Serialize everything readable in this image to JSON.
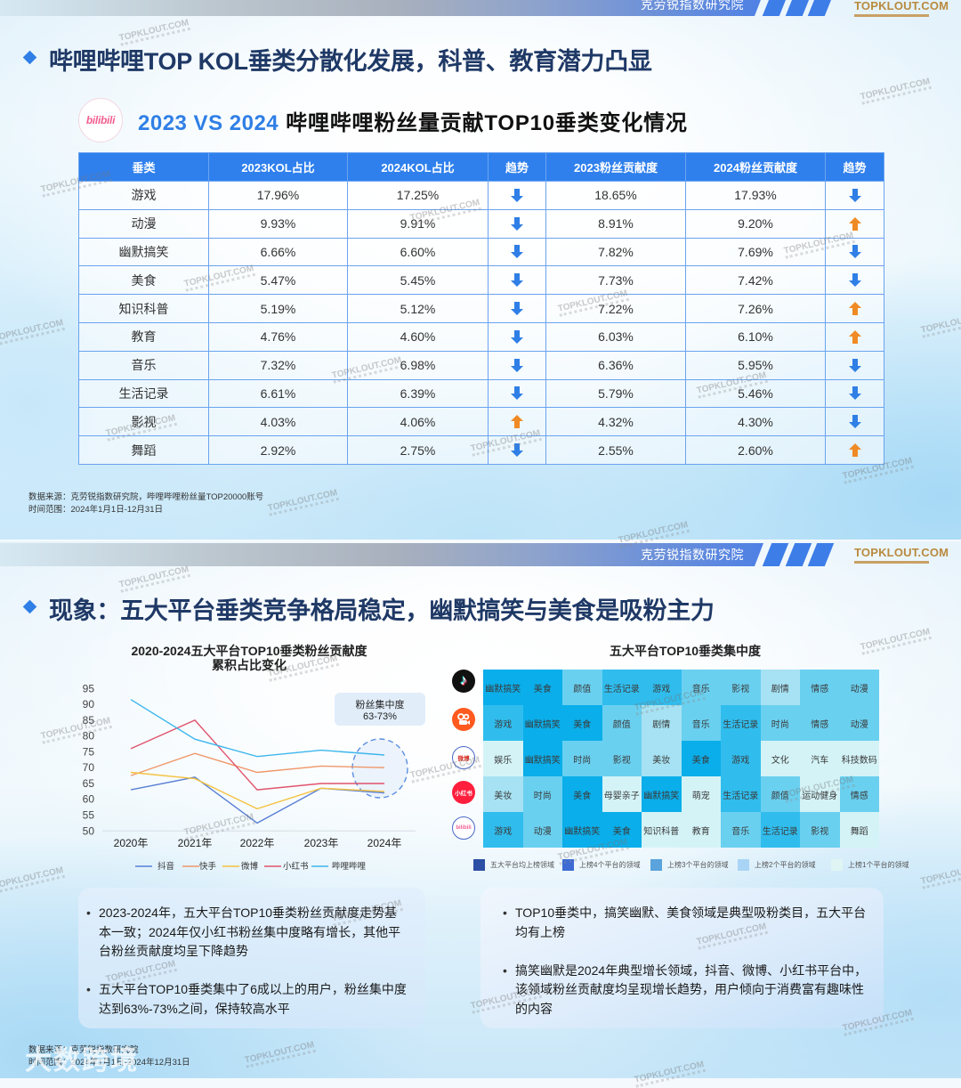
{
  "watermark": "TOPKLOUT.COM",
  "overlay_watermark": "大数跨境",
  "header": {
    "org": "克劳锐指数研究院",
    "logo": "TOPKLOUT.COM"
  },
  "colors": {
    "accent": "#2f7fe6",
    "title": "#1f3966",
    "table_header": "#2f80ed",
    "trend_down": "#2f7fe6",
    "trend_up": "#f08a24",
    "brand_gold": "#b98a3e"
  },
  "slide1": {
    "title": "哔哩哔哩TOP KOL垂类分散化发展，科普、教育潜力凸显",
    "platform_logo": "bilibili",
    "subtitle_highlight": "2023 VS 2024",
    "subtitle": "哔哩哔哩粉丝量贡献TOP10垂类变化情况",
    "table": {
      "headers": [
        "垂类",
        "2023KOL占比",
        "2024KOL占比",
        "趋势",
        "2023粉丝贡献度",
        "2024粉丝贡献度",
        "趋势"
      ],
      "rows": [
        {
          "category": "游戏",
          "kol2023": "17.96%",
          "kol2024": "17.25%",
          "kol_trend": "down",
          "fan2023": "18.65%",
          "fan2024": "17.93%",
          "fan_trend": "down"
        },
        {
          "category": "动漫",
          "kol2023": "9.93%",
          "kol2024": "9.91%",
          "kol_trend": "down",
          "fan2023": "8.91%",
          "fan2024": "9.20%",
          "fan_trend": "up"
        },
        {
          "category": "幽默搞笑",
          "kol2023": "6.66%",
          "kol2024": "6.60%",
          "kol_trend": "down",
          "fan2023": "7.82%",
          "fan2024": "7.69%",
          "fan_trend": "down"
        },
        {
          "category": "美食",
          "kol2023": "5.47%",
          "kol2024": "5.45%",
          "kol_trend": "down",
          "fan2023": "7.73%",
          "fan2024": "7.42%",
          "fan_trend": "down"
        },
        {
          "category": "知识科普",
          "kol2023": "5.19%",
          "kol2024": "5.12%",
          "kol_trend": "down",
          "fan2023": "7.22%",
          "fan2024": "7.26%",
          "fan_trend": "up"
        },
        {
          "category": "教育",
          "kol2023": "4.76%",
          "kol2024": "4.60%",
          "kol_trend": "down",
          "fan2023": "6.03%",
          "fan2024": "6.10%",
          "fan_trend": "up"
        },
        {
          "category": "音乐",
          "kol2023": "7.32%",
          "kol2024": "6.98%",
          "kol_trend": "down",
          "fan2023": "6.36%",
          "fan2024": "5.95%",
          "fan_trend": "down"
        },
        {
          "category": "生活记录",
          "kol2023": "6.61%",
          "kol2024": "6.39%",
          "kol_trend": "down",
          "fan2023": "5.79%",
          "fan2024": "5.46%",
          "fan_trend": "down"
        },
        {
          "category": "影视",
          "kol2023": "4.03%",
          "kol2024": "4.06%",
          "kol_trend": "up",
          "fan2023": "4.32%",
          "fan2024": "4.30%",
          "fan_trend": "down"
        },
        {
          "category": "舞蹈",
          "kol2023": "2.92%",
          "kol2024": "2.75%",
          "kol_trend": "down",
          "fan2023": "2.55%",
          "fan2024": "2.60%",
          "fan_trend": "up"
        }
      ]
    },
    "footnote": {
      "source": "数据来源：克劳锐指数研究院，哔哩哔哩粉丝量TOP20000账号",
      "time": "时间范围：2024年1月1日-12月31日"
    }
  },
  "slide2": {
    "title": "现象：五大平台垂类竞争格局稳定，幽默搞笑与美食是吸粉主力",
    "notes_left": [
      "2023-2024年，五大平台TOP10垂类粉丝贡献度走势基本一致；2024年仅小红书粉丝集中度略有增长，其他平台粉丝贡献度均呈下降趋势",
      "五大平台TOP10垂类集中了6成以上的用户，粉丝集中度达到63%-73%之间，保持较高水平"
    ],
    "notes_right": [
      "TOP10垂类中，搞笑幽默、美食领域是典型吸粉类目，五大平台均有上榜",
      "搞笑幽默是2024年典型增长领域，抖音、微博、小红书平台中，该领域粉丝贡献度均呈现增长趋势，用户倾向于消费富有趣味性的内容"
    ],
    "footnote": {
      "source": "数据来源：克劳锐指数研究院",
      "time": "时间范围：2024年1月1日-2024年12月31日"
    }
  },
  "chart_data": [
    {
      "type": "line",
      "title": "2020-2024五大平台TOP10垂类粉丝贡献度累积占比变化",
      "title_lines": [
        "2020-2024五大平台TOP10垂类粉丝贡献度",
        "累积占比变化"
      ],
      "categories": [
        "2020年",
        "2021年",
        "2022年",
        "2023年",
        "2024年"
      ],
      "series": [
        {
          "name": "抖音",
          "color": "#5a7fd4",
          "values": [
            63,
            67,
            52.5,
            63.5,
            62
          ]
        },
        {
          "name": "快手",
          "color": "#f0976a",
          "values": [
            67.5,
            74.5,
            68.5,
            70.5,
            70
          ]
        },
        {
          "name": "微博",
          "color": "#f4c23f",
          "values": [
            68.5,
            66.5,
            57,
            63.5,
            62.5
          ]
        },
        {
          "name": "小红书",
          "color": "#e0536c",
          "values": [
            76,
            85,
            63,
            65,
            65
          ]
        },
        {
          "name": "哔哩哔哩",
          "color": "#3db6ec",
          "values": [
            91.5,
            79,
            73.5,
            75.5,
            74
          ]
        }
      ],
      "yticks": [
        95,
        90,
        85,
        80,
        75,
        70,
        65,
        60,
        55,
        50
      ],
      "ylim": [
        50,
        95
      ],
      "xlabel": "",
      "ylabel": "",
      "grid": false,
      "legend_position": "bottom",
      "annotation": {
        "lines": [
          "粉丝集中度",
          "63-73%"
        ],
        "target": "2024年"
      }
    },
    {
      "type": "heatmap",
      "title": "五大平台TOP10垂类集中度",
      "cell_colors": {
        "5": "#0aaeea",
        "4": "#30bdee",
        "3": "#6ad0f0",
        "2": "#a6e2f3",
        "1": "#d4f3f7"
      },
      "rows": [
        {
          "icon": "douyin",
          "icon_text": "",
          "cells": [
            {
              "label": "幽默搞笑",
              "level": 5
            },
            {
              "label": "美食",
              "level": 5
            },
            {
              "label": "颜值",
              "level": 3
            },
            {
              "label": "生活记录",
              "level": 4
            },
            {
              "label": "游戏",
              "level": 4
            },
            {
              "label": "音乐",
              "level": 3
            },
            {
              "label": "影视",
              "level": 3
            },
            {
              "label": "剧情",
              "level": 2
            },
            {
              "label": "情感",
              "level": 3
            },
            {
              "label": "动漫",
              "level": 3
            }
          ]
        },
        {
          "icon": "kuaishou",
          "icon_text": "",
          "cells": [
            {
              "label": "游戏",
              "level": 4
            },
            {
              "label": "幽默搞笑",
              "level": 5
            },
            {
              "label": "美食",
              "level": 5
            },
            {
              "label": "颜值",
              "level": 3
            },
            {
              "label": "剧情",
              "level": 2
            },
            {
              "label": "音乐",
              "level": 3
            },
            {
              "label": "生活记录",
              "level": 4
            },
            {
              "label": "时尚",
              "level": 3
            },
            {
              "label": "情感",
              "level": 3
            },
            {
              "label": "动漫",
              "level": 3
            }
          ]
        },
        {
          "icon": "weibo",
          "icon_text": "微博",
          "cells": [
            {
              "label": "娱乐",
              "level": 1
            },
            {
              "label": "幽默搞笑",
              "level": 5
            },
            {
              "label": "时尚",
              "level": 3
            },
            {
              "label": "影视",
              "level": 3
            },
            {
              "label": "美妆",
              "level": 2
            },
            {
              "label": "美食",
              "level": 5
            },
            {
              "label": "游戏",
              "level": 4
            },
            {
              "label": "文化",
              "level": 1
            },
            {
              "label": "汽车",
              "level": 1
            },
            {
              "label": "科技数码",
              "level": 1
            }
          ]
        },
        {
          "icon": "xiaohongshu",
          "icon_text": "小红书",
          "cells": [
            {
              "label": "美妆",
              "level": 2
            },
            {
              "label": "时尚",
              "level": 3
            },
            {
              "label": "美食",
              "level": 5
            },
            {
              "label": "母婴亲子",
              "level": 1
            },
            {
              "label": "幽默搞笑",
              "level": 5
            },
            {
              "label": "萌宠",
              "level": 1
            },
            {
              "label": "生活记录",
              "level": 4
            },
            {
              "label": "颜值",
              "level": 3
            },
            {
              "label": "运动健身",
              "level": 1
            },
            {
              "label": "情感",
              "level": 3
            }
          ]
        },
        {
          "icon": "bilibili",
          "icon_text": "bilibili",
          "cells": [
            {
              "label": "游戏",
              "level": 4
            },
            {
              "label": "动漫",
              "level": 3
            },
            {
              "label": "幽默搞笑",
              "level": 5
            },
            {
              "label": "美食",
              "level": 5
            },
            {
              "label": "知识科普",
              "level": 1
            },
            {
              "label": "教育",
              "level": 1
            },
            {
              "label": "音乐",
              "level": 3
            },
            {
              "label": "生活记录",
              "level": 4
            },
            {
              "label": "影视",
              "level": 3
            },
            {
              "label": "舞蹈",
              "level": 1
            }
          ]
        }
      ],
      "legend": [
        {
          "label": "五大平台均上榜领域",
          "level": 5,
          "color": "#2b4fa5"
        },
        {
          "label": "上榜4个平台的领域",
          "level": 4,
          "color": "#3d6bd3"
        },
        {
          "label": "上榜3个平台的领域",
          "level": 3,
          "color": "#5aa3dc"
        },
        {
          "label": "上榜2个平台的领域",
          "level": 2,
          "color": "#a9d4f5"
        },
        {
          "label": "上榜1个平台的领域",
          "level": 1,
          "color": "#dff5f3"
        }
      ]
    }
  ]
}
